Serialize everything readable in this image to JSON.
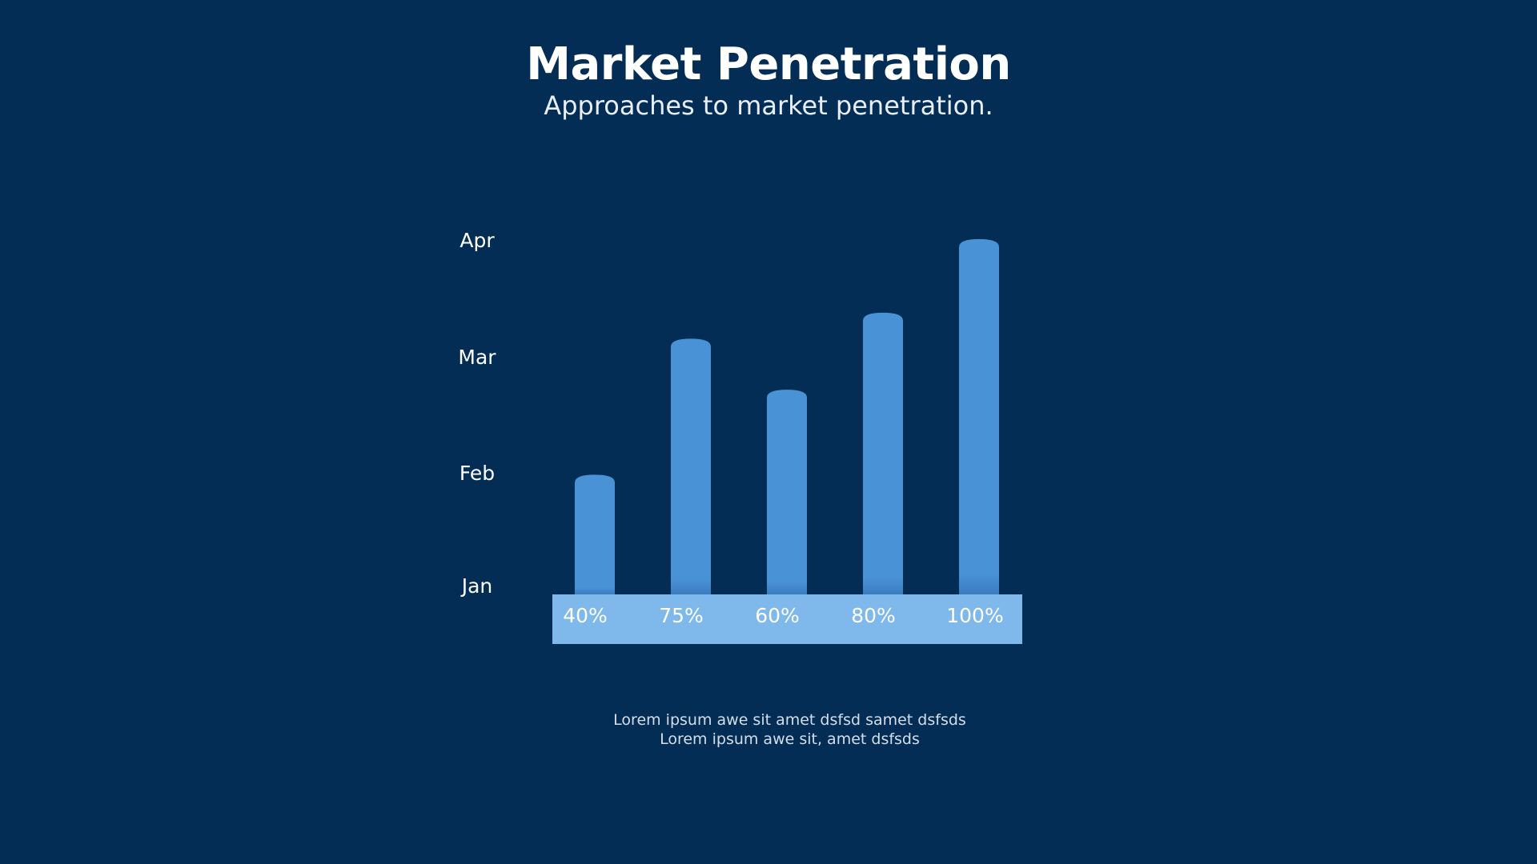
{
  "title": "Market Penetration",
  "subtitle": "Approaches to market penetration.",
  "chart_data": {
    "type": "bar",
    "categories": [
      "40%",
      "75%",
      "60%",
      "80%",
      "100%"
    ],
    "values": [
      1.05,
      2.25,
      1.8,
      2.48,
      3.13
    ],
    "y_tick_labels": [
      "Jan",
      "Feb",
      "Mar",
      "Apr"
    ],
    "ylim": [
      0,
      3.15
    ],
    "grid": false,
    "legend": "none"
  },
  "notes": {
    "line1": "Lorem ipsum awe sit amet dsfsd samet dsfsds",
    "line2": "Lorem ipsum awe sit, amet dsfsds"
  },
  "colors": {
    "background": "#032d55",
    "bar": "#4a92d6",
    "baseline_strip": "#7fb9ec",
    "text": "#ffffff"
  }
}
